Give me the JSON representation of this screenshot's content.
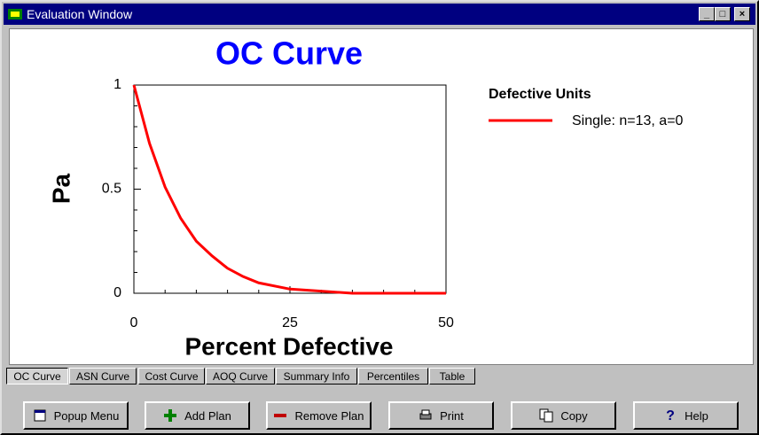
{
  "window_title": "Evaluation Window",
  "chart_data": {
    "type": "line",
    "title": "OC Curve",
    "x_label": "Percent Defective",
    "y_label": "Pa",
    "x": [
      0,
      2.5,
      5,
      7.5,
      10,
      12.5,
      15,
      17.5,
      20,
      25,
      30,
      35,
      40,
      45,
      50
    ],
    "series": [
      {
        "name": "Single: n=13, a=0",
        "color": "#ff0000",
        "values": [
          1,
          0.72,
          0.51,
          0.36,
          0.25,
          0.18,
          0.12,
          0.08,
          0.05,
          0.02,
          0.01,
          0,
          0,
          0,
          0
        ]
      }
    ],
    "legend_title": "Defective Units",
    "xlim": [
      0,
      50
    ],
    "xticks": [
      0,
      25,
      50
    ],
    "xminor_ticks": [
      5,
      10,
      15,
      20,
      30,
      35,
      40,
      45
    ],
    "ylim": [
      0,
      1
    ],
    "yticks": [
      0,
      0.5,
      1
    ],
    "yminor_ticks": [
      0.1,
      0.2,
      0.3,
      0.4,
      0.6,
      0.7,
      0.8,
      0.9
    ],
    "grid": false,
    "legend_position": "right"
  },
  "tabs": [
    "OC Curve",
    "ASN Curve",
    "Cost Curve",
    "AOQ Curve",
    "Summary Info",
    "Percentiles",
    "Table"
  ],
  "buttons": [
    "Popup Menu",
    "Add Plan",
    "Remove Plan",
    "Print",
    "Copy",
    "Help"
  ]
}
